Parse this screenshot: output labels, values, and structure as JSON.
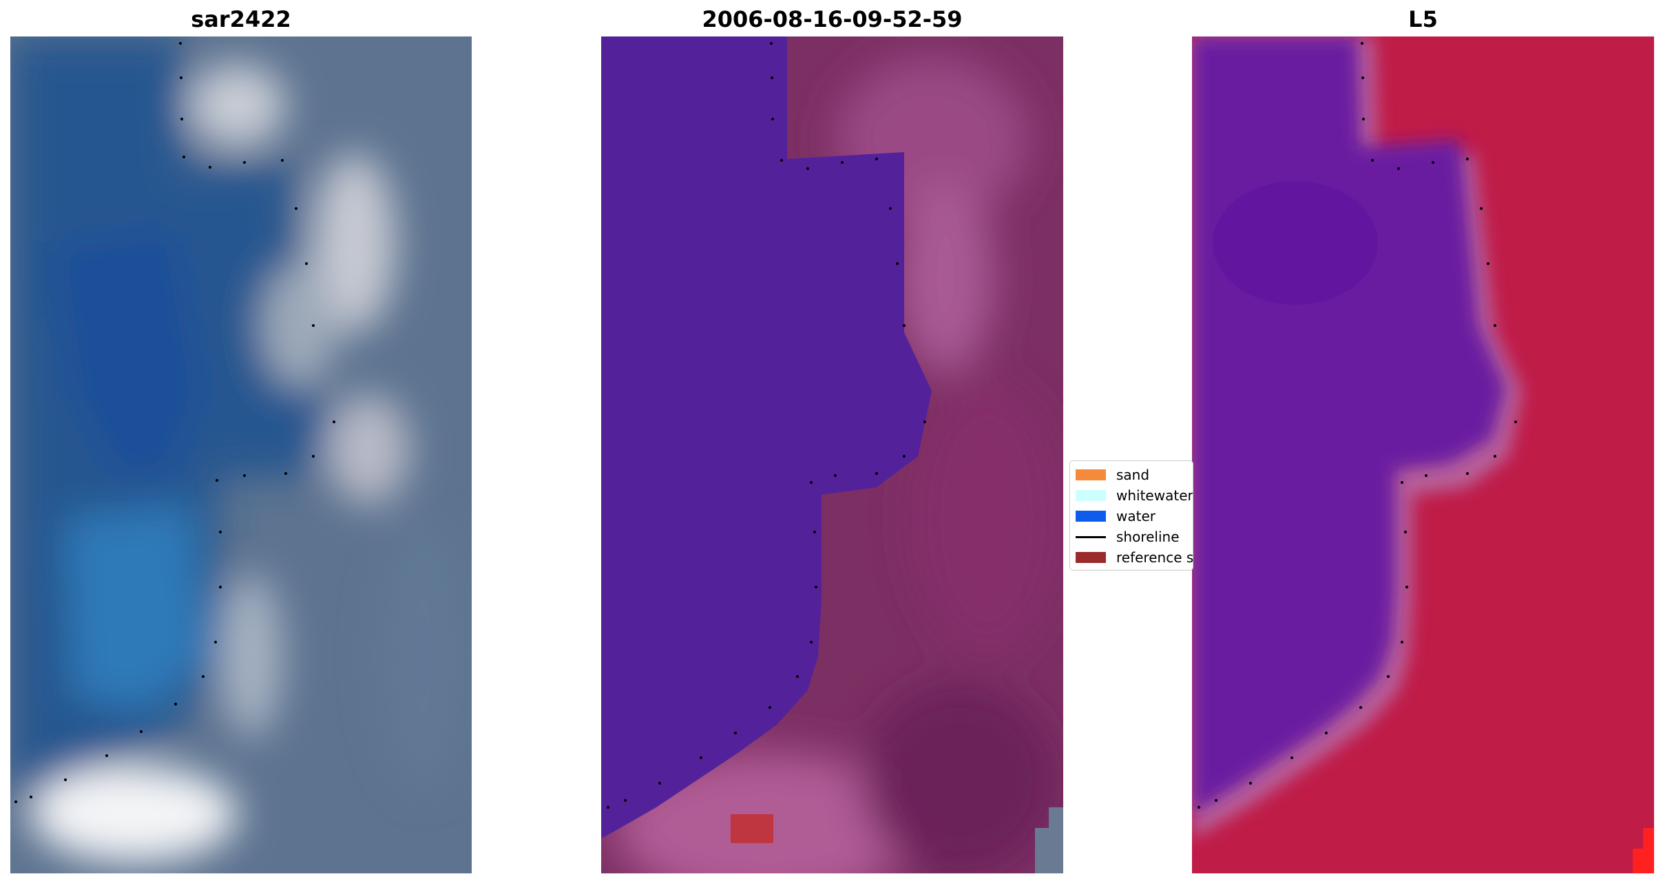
{
  "panels": [
    {
      "title": "sar2422"
    },
    {
      "title": "2006-08-16-09-52-59"
    },
    {
      "title": "L5"
    }
  ],
  "legend": {
    "items": [
      {
        "label": "sand",
        "color": "#f58a3a",
        "kind": "patch"
      },
      {
        "label": "whitewater",
        "color": "#ccffff",
        "kind": "patch"
      },
      {
        "label": "water",
        "color": "#0d5cec",
        "kind": "patch"
      },
      {
        "label": "shoreline",
        "color": "#000000",
        "kind": "line"
      },
      {
        "label": "reference shoreline buffer",
        "color": "#992b2b",
        "kind": "patch"
      }
    ]
  },
  "colors": {
    "water_class": "#53229a",
    "sand_pink": "#8b3c73",
    "index_water": "#6a1ea0",
    "index_land": "#c01c48",
    "buffer_patch": "#c03640",
    "shoreline_dots": "#000000"
  }
}
